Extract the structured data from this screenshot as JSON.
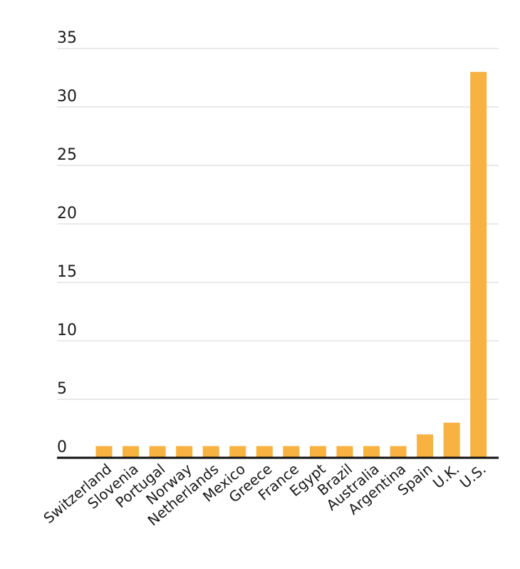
{
  "chart_data": {
    "type": "bar",
    "title": "",
    "xlabel": "",
    "ylabel": "",
    "categories": [
      "Switzerland",
      "Slovenia",
      "Portugal",
      "Norway",
      "Netherlands",
      "Mexico",
      "Greece",
      "France",
      "Egypt",
      "Brazil",
      "Australia",
      "Argentina",
      "Spain",
      "U.K.",
      "U.S."
    ],
    "values": [
      1,
      1,
      1,
      1,
      1,
      1,
      1,
      1,
      1,
      1,
      1,
      1,
      2,
      3,
      33
    ],
    "ylim": [
      0,
      35
    ],
    "yticks": [
      0,
      5,
      10,
      15,
      20,
      25,
      30,
      35
    ],
    "grid": true,
    "bar_color": "#F7B242",
    "gridline_color": "#e2e2e2",
    "baseline_color": "#111111"
  }
}
